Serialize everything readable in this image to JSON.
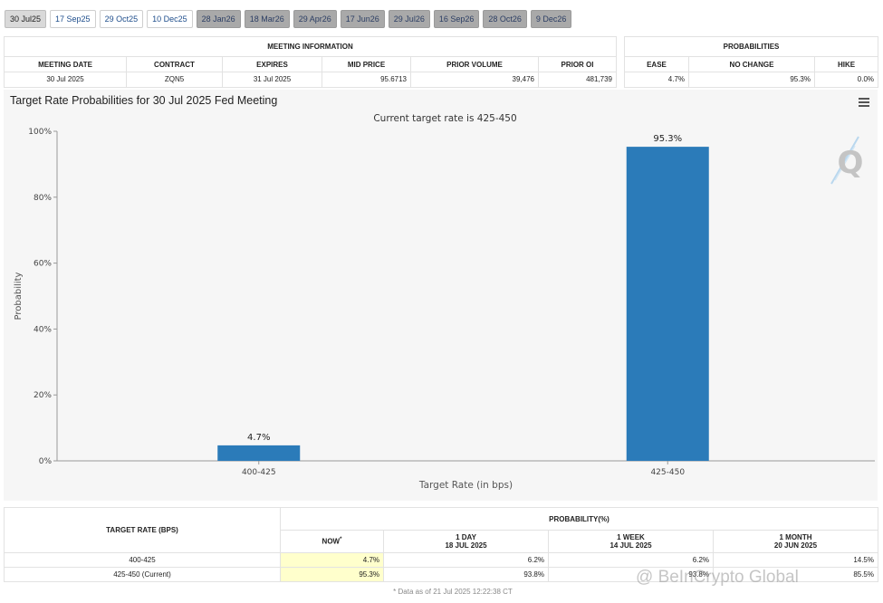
{
  "tabs": [
    {
      "label": "30 Jul25",
      "state": "active"
    },
    {
      "label": "17 Sep25",
      "state": "avail"
    },
    {
      "label": "29 Oct25",
      "state": "avail"
    },
    {
      "label": "10 Dec25",
      "state": "avail"
    },
    {
      "label": "28 Jan26",
      "state": "dim"
    },
    {
      "label": "18 Mar26",
      "state": "dim"
    },
    {
      "label": "29 Apr26",
      "state": "dim"
    },
    {
      "label": "17 Jun26",
      "state": "dim"
    },
    {
      "label": "29 Jul26",
      "state": "dim"
    },
    {
      "label": "16 Sep26",
      "state": "dim"
    },
    {
      "label": "28 Oct26",
      "state": "dim"
    },
    {
      "label": "9 Dec26",
      "state": "dim"
    }
  ],
  "meeting_info": {
    "heading": "MEETING INFORMATION",
    "headers": [
      "MEETING DATE",
      "CONTRACT",
      "EXPIRES",
      "MID PRICE",
      "PRIOR VOLUME",
      "PRIOR OI"
    ],
    "values": [
      "30 Jul 2025",
      "ZQN5",
      "31 Jul 2025",
      "95.6713",
      "39,476",
      "481,739"
    ]
  },
  "probabilities": {
    "heading": "PROBABILITIES",
    "headers": [
      "EASE",
      "NO CHANGE",
      "HIKE"
    ],
    "values": [
      "4.7%",
      "95.3%",
      "0.0%"
    ]
  },
  "chart_data": {
    "type": "bar",
    "title": "Target Rate Probabilities for 30 Jul 2025 Fed Meeting",
    "subtitle": "Current target rate is 425-450",
    "xlabel": "Target Rate (in bps)",
    "ylabel": "Probability",
    "categories": [
      "400-425",
      "425-450"
    ],
    "values": [
      4.7,
      95.3
    ],
    "data_labels": [
      "4.7%",
      "95.3%"
    ],
    "ylim": [
      0,
      100
    ],
    "yticks": [
      0,
      20,
      40,
      60,
      80,
      100
    ],
    "ytick_labels": [
      "0%",
      "20%",
      "40%",
      "60%",
      "80%",
      "100%"
    ],
    "bar_color": "#2b7bb9",
    "grid": false
  },
  "prob_table": {
    "target_rate_header": "TARGET RATE (BPS)",
    "probability_header": "PROBABILITY(%)",
    "columns": [
      {
        "label": "NOW",
        "marker": "*",
        "date": ""
      },
      {
        "label": "1 DAY",
        "date": "18 JUL 2025"
      },
      {
        "label": "1 WEEK",
        "date": "14 JUL 2025"
      },
      {
        "label": "1 MONTH",
        "date": "20 JUN 2025"
      }
    ],
    "rows": [
      {
        "rate": "400-425",
        "values": [
          "4.7%",
          "6.2%",
          "6.2%",
          "14.5%"
        ]
      },
      {
        "rate": "425-450 (Current)",
        "values": [
          "95.3%",
          "93.8%",
          "93.8%",
          "85.5%"
        ]
      }
    ],
    "footnote": "* Data as of 21 Jul 2025 12:22:38 CT"
  },
  "watermark": "@ BeInCrypto Global",
  "menu_icon": "hamburger-menu-icon",
  "brand_icon": "quikstrike-q-icon"
}
